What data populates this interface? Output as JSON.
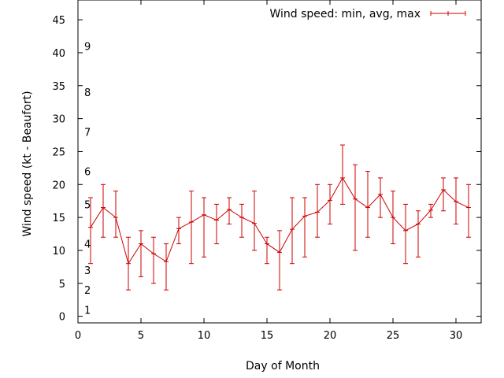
{
  "chart_data": {
    "type": "line",
    "title": "",
    "xlabel": "Day of Month",
    "ylabel": "Wind speed (kt - Beaufort)",
    "xlim": [
      0,
      32
    ],
    "ylim": [
      -1,
      48
    ],
    "x_ticks": [
      0,
      5,
      10,
      15,
      20,
      25,
      30
    ],
    "y_ticks": [
      0,
      5,
      10,
      15,
      20,
      25,
      30,
      35,
      40,
      45
    ],
    "x_tick_labels": [
      "0",
      "5",
      "10",
      "15",
      "20",
      "25",
      "30"
    ],
    "y_tick_labels": [
      "0",
      "5",
      "10",
      "15",
      "20",
      "25",
      "30",
      "35",
      "40",
      "45"
    ],
    "beaufort_labels": [
      {
        "label": "1",
        "y": 1
      },
      {
        "label": "2",
        "y": 4
      },
      {
        "label": "3",
        "y": 7
      },
      {
        "label": "4",
        "y": 11
      },
      {
        "label": "5",
        "y": 17
      },
      {
        "label": "6",
        "y": 22
      },
      {
        "label": "7",
        "y": 28
      },
      {
        "label": "8",
        "y": 34
      },
      {
        "label": "9",
        "y": 41
      }
    ],
    "grid": false,
    "legend_position": "top-right",
    "colors": {
      "series": "#cc0000",
      "axis": "#000000",
      "background": "#ffffff"
    },
    "series": [
      {
        "name": "Wind speed: min, avg, max",
        "x": [
          1,
          2,
          3,
          4,
          5,
          6,
          7,
          8,
          9,
          10,
          11,
          12,
          13,
          14,
          15,
          16,
          17,
          18,
          19,
          20,
          21,
          22,
          23,
          24,
          25,
          26,
          27,
          28,
          29,
          30,
          31
        ],
        "avg": [
          13.5,
          16.5,
          15,
          8,
          11,
          9.5,
          8.3,
          13.3,
          14.3,
          15.4,
          14.6,
          16.2,
          15,
          14.1,
          11,
          9.7,
          13.2,
          15.2,
          15.8,
          17.6,
          21,
          17.8,
          16.5,
          18.5,
          15,
          13,
          14,
          16.1,
          19.2,
          17.4,
          16.5
        ],
        "min": [
          8,
          12,
          12,
          4,
          6,
          5,
          4,
          11,
          8,
          9,
          11,
          14,
          12,
          10,
          8,
          4,
          8,
          9,
          12,
          14,
          17,
          10,
          12,
          15,
          11,
          8,
          9,
          15,
          16,
          14,
          12
        ],
        "max": [
          18,
          20,
          19,
          12,
          13,
          12,
          11,
          15,
          19,
          18,
          17,
          18,
          17,
          19,
          12,
          13,
          18,
          18,
          20,
          20,
          26,
          23,
          22,
          21,
          19,
          17,
          16,
          17,
          21,
          21,
          20
        ]
      }
    ]
  }
}
